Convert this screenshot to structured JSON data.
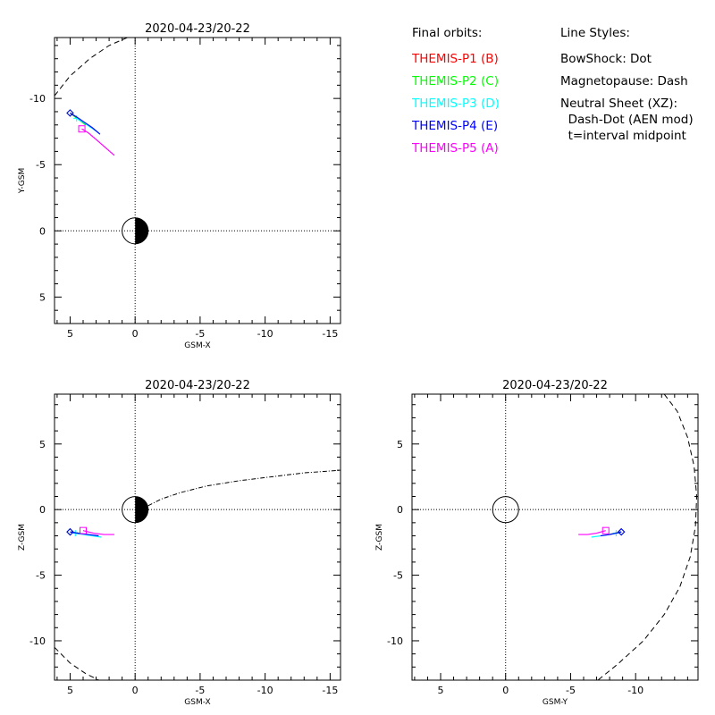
{
  "legend": {
    "final_orbits_title": "Final orbits:",
    "probes": [
      {
        "label": "THEMIS-P1 (B)",
        "color": "#ff0000"
      },
      {
        "label": "THEMIS-P2 (C)",
        "color": "#00ff00"
      },
      {
        "label": "THEMIS-P3 (D)",
        "color": "#00ffff"
      },
      {
        "label": "THEMIS-P4 (E)",
        "color": "#0000ff"
      },
      {
        "label": "THEMIS-P5 (A)",
        "color": "#ff00ff"
      }
    ],
    "line_styles_title": "Line Styles:",
    "line_styles": [
      "BowShock: Dot",
      "Magnetopause: Dash",
      "Neutral Sheet (XZ):",
      "  Dash-Dot (AEN mod)",
      "  t=interval midpoint"
    ]
  },
  "chart_data": [
    {
      "id": "xy",
      "type": "line",
      "title": "2020-04-23/20-22",
      "xlabel": "GSM-X",
      "ylabel": "Y-GSM",
      "xlim": [
        6.2,
        -15.8
      ],
      "ylim": [
        7,
        -14.6
      ],
      "xticks": [
        5,
        0,
        -5,
        -10,
        -15
      ],
      "yticks": [
        5,
        0,
        -5,
        -10
      ],
      "earth": {
        "x": 0,
        "y": 0,
        "r": 1,
        "nightside": "negative-x"
      },
      "boundaries": [
        {
          "name": "Magnetopause",
          "style": "dash",
          "x": [
            6.2,
            5.0,
            3.5,
            2.0,
            0.6
          ],
          "y": [
            -10.2,
            -11.7,
            -13.0,
            -14.0,
            -14.6
          ]
        }
      ],
      "series": [
        {
          "probe": "THEMIS-P1 (B)",
          "color": "#ff0000",
          "x": [
            3.8,
            4.2,
            4.6,
            5.0
          ],
          "y": [
            -8.0,
            -8.3,
            -8.6,
            -8.9
          ],
          "end_marker": "diamond"
        },
        {
          "probe": "THEMIS-P2 (C)",
          "color": "#00ff00",
          "x": [
            3.8,
            4.2,
            4.6,
            5.0
          ],
          "y": [
            -8.0,
            -8.3,
            -8.6,
            -8.9
          ],
          "end_marker": "diamond"
        },
        {
          "probe": "THEMIS-P3 (D)",
          "color": "#00ffff",
          "x": [
            2.8,
            3.4,
            4.0,
            4.5
          ],
          "y": [
            -7.4,
            -7.8,
            -8.2,
            -8.5
          ],
          "end_marker": "plus"
        },
        {
          "probe": "THEMIS-P4 (E)",
          "color": "#0000ff",
          "x": [
            2.7,
            3.3,
            3.9,
            4.5,
            5.0
          ],
          "y": [
            -7.3,
            -7.8,
            -8.2,
            -8.6,
            -8.9
          ],
          "end_marker": "diamond"
        },
        {
          "probe": "THEMIS-P5 (A)",
          "color": "#ff00ff",
          "x": [
            1.6,
            2.3,
            3.0,
            3.6,
            4.1
          ],
          "y": [
            -5.7,
            -6.3,
            -6.9,
            -7.4,
            -7.7
          ],
          "end_marker": "square"
        }
      ]
    },
    {
      "id": "xz",
      "type": "line",
      "title": "2020-04-23/20-22",
      "xlabel": "GSM-X",
      "ylabel": "Z-GSM",
      "xlim": [
        6.2,
        -15.8
      ],
      "ylim": [
        -13,
        8.8
      ],
      "xticks": [
        5,
        0,
        -5,
        -10,
        -15
      ],
      "yticks": [
        5,
        0,
        -5,
        -10
      ],
      "earth": {
        "x": 0,
        "y": 0,
        "r": 1,
        "nightside": "negative-x"
      },
      "boundaries": [
        {
          "name": "Magnetopause",
          "style": "dash",
          "x": [
            6.2,
            5.0,
            3.8,
            2.8
          ],
          "y": [
            -10.5,
            -11.7,
            -12.5,
            -13.0
          ]
        },
        {
          "name": "Neutral Sheet",
          "style": "dashdot",
          "x": [
            -1.0,
            -2.0,
            -3.5,
            -5.5,
            -8.0,
            -10.5,
            -13.0,
            -15.8
          ],
          "y": [
            0.3,
            0.8,
            1.3,
            1.8,
            2.2,
            2.5,
            2.8,
            3.0
          ]
        }
      ],
      "series": [
        {
          "probe": "THEMIS-P1 (B)",
          "color": "#ff0000",
          "x": [
            3.8,
            4.3,
            5.0
          ],
          "y": [
            -1.9,
            -1.8,
            -1.7
          ],
          "end_marker": "diamond"
        },
        {
          "probe": "THEMIS-P2 (C)",
          "color": "#00ff00",
          "x": [
            3.8,
            4.3,
            5.0
          ],
          "y": [
            -1.9,
            -1.8,
            -1.7
          ],
          "end_marker": "diamond"
        },
        {
          "probe": "THEMIS-P3 (D)",
          "color": "#00ffff",
          "x": [
            2.6,
            3.3,
            4.0,
            4.6
          ],
          "y": [
            -2.1,
            -2.0,
            -1.9,
            -1.8
          ],
          "end_marker": "plus"
        },
        {
          "probe": "THEMIS-P4 (E)",
          "color": "#0000ff",
          "x": [
            2.8,
            3.6,
            4.4,
            5.0
          ],
          "y": [
            -2.0,
            -1.9,
            -1.8,
            -1.7
          ],
          "end_marker": "diamond"
        },
        {
          "probe": "THEMIS-P5 (A)",
          "color": "#ff00ff",
          "x": [
            1.6,
            2.4,
            3.2,
            4.0
          ],
          "y": [
            -1.9,
            -1.9,
            -1.8,
            -1.6
          ],
          "end_marker": "square"
        }
      ]
    },
    {
      "id": "yz",
      "type": "line",
      "title": "2020-04-23/20-22",
      "xlabel": "GSM-Y",
      "ylabel": "Z-GSM",
      "xlim": [
        7.2,
        -14.8
      ],
      "ylim": [
        -13,
        8.8
      ],
      "xticks": [
        5,
        0,
        -5,
        -10
      ],
      "yticks": [
        5,
        0,
        -5,
        -10
      ],
      "earth": {
        "x": 0,
        "y": 0,
        "r": 1,
        "nightside": "none"
      },
      "boundaries": [
        {
          "name": "Magnetopause",
          "style": "dash",
          "x": [
            -12.2,
            -13.2,
            -14.0,
            -14.5,
            -14.7,
            -14.6,
            -14.2,
            -13.4,
            -12.2,
            -10.6,
            -8.6,
            -7.1
          ],
          "y": [
            8.8,
            7.5,
            5.5,
            3.3,
            1.0,
            -1.3,
            -3.6,
            -5.9,
            -8.0,
            -10.0,
            -11.8,
            -13.0
          ]
        }
      ],
      "series": [
        {
          "probe": "THEMIS-P1 (B)",
          "color": "#ff0000",
          "x": [
            -8.0,
            -8.4,
            -8.9
          ],
          "y": [
            -1.9,
            -1.8,
            -1.7
          ],
          "end_marker": "diamond"
        },
        {
          "probe": "THEMIS-P2 (C)",
          "color": "#00ff00",
          "x": [
            -8.0,
            -8.4,
            -8.9
          ],
          "y": [
            -1.9,
            -1.8,
            -1.7
          ],
          "end_marker": "diamond"
        },
        {
          "probe": "THEMIS-P3 (D)",
          "color": "#00ffff",
          "x": [
            -6.6,
            -7.3,
            -8.0,
            -8.5
          ],
          "y": [
            -2.1,
            -2.0,
            -1.9,
            -1.8
          ],
          "end_marker": "plus"
        },
        {
          "probe": "THEMIS-P4 (E)",
          "color": "#0000ff",
          "x": [
            -7.3,
            -8.0,
            -8.5,
            -8.9
          ],
          "y": [
            -2.0,
            -1.9,
            -1.8,
            -1.7
          ],
          "end_marker": "diamond"
        },
        {
          "probe": "THEMIS-P5 (A)",
          "color": "#ff00ff",
          "x": [
            -5.6,
            -6.3,
            -7.0,
            -7.7
          ],
          "y": [
            -1.9,
            -1.9,
            -1.8,
            -1.6
          ],
          "end_marker": "square"
        }
      ]
    }
  ]
}
